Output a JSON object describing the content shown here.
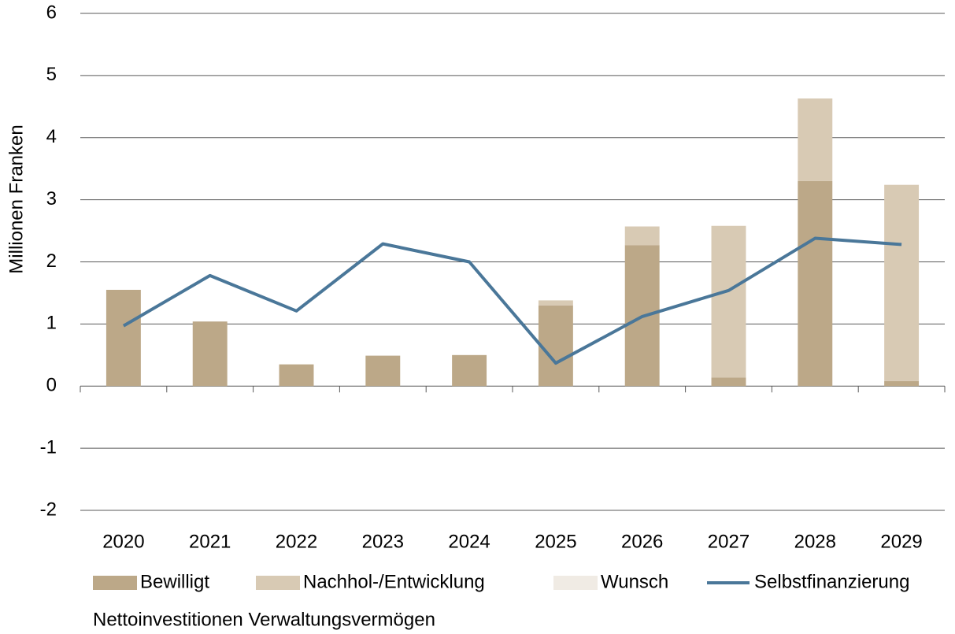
{
  "chart_data": {
    "type": "bar-line",
    "y_label": "Millionen Franken",
    "caption": "Nettoinvestitionen Verwaltungsvermögen",
    "categories": [
      "2020",
      "2021",
      "2022",
      "2023",
      "2024",
      "2025",
      "2026",
      "2027",
      "2028",
      "2029"
    ],
    "series": [
      {
        "name": "Bewilligt",
        "color": "#bca888",
        "kind": "bar",
        "values": [
          1.55,
          1.04,
          0.35,
          0.49,
          0.5,
          1.3,
          2.27,
          0.14,
          3.3,
          0.08
        ]
      },
      {
        "name": "Nachhol-/Entwicklung",
        "color": "#d8cab4",
        "kind": "bar",
        "values": [
          0,
          0,
          0,
          0,
          0,
          0.08,
          0.3,
          2.44,
          1.33,
          3.16
        ]
      },
      {
        "name": "Wunsch",
        "color": "#f0ebe4",
        "kind": "bar",
        "values": [
          0,
          0,
          0,
          0,
          0,
          0,
          0,
          0,
          0,
          0
        ]
      },
      {
        "name": "Selbstfinanzierung",
        "color": "#4a7799",
        "kind": "line",
        "values": [
          0.97,
          1.78,
          1.21,
          2.29,
          2.0,
          0.37,
          1.12,
          1.54,
          2.38,
          2.28
        ]
      }
    ],
    "stacked": true,
    "ylim": [
      -2,
      6
    ],
    "yticks": [
      -2,
      -1,
      0,
      1,
      2,
      3,
      4,
      5,
      6
    ],
    "grid": true
  }
}
